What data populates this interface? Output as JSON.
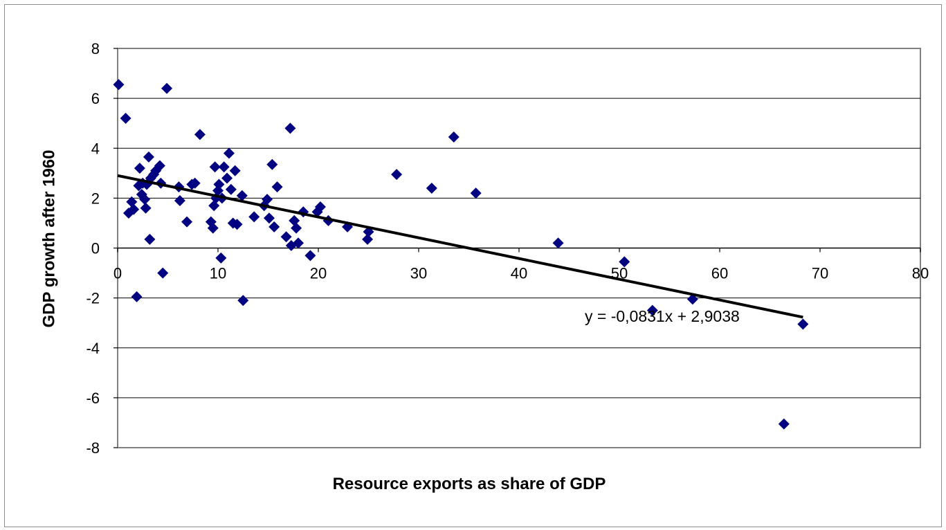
{
  "chart_data": {
    "type": "scatter",
    "title": "",
    "xlabel": "Resource exports as share of GDP",
    "ylabel": "GDP growth after 1960",
    "xlim": [
      0,
      80
    ],
    "ylim": [
      -8,
      8
    ],
    "x_ticks": [
      "0",
      "10",
      "20",
      "30",
      "40",
      "50",
      "60",
      "70",
      "80"
    ],
    "y_ticks": [
      "8",
      "6",
      "4",
      "2",
      "0",
      "-2",
      "-4",
      "-6",
      "-8"
    ],
    "grid": "horizontal",
    "colors": {
      "points": "#000080",
      "trendline": "#000000",
      "grid": "#000000"
    },
    "trendline": {
      "equation": "y = -0,0831x + 2,9038",
      "slope": -0.0831,
      "intercept": 2.9038,
      "x_range": [
        0,
        68.3
      ]
    },
    "series": [
      {
        "marker": "diamond",
        "x": [
          0.1,
          0.8,
          1.1,
          1.4,
          1.6,
          1.9,
          2.1,
          2.2,
          2.4,
          2.5,
          2.7,
          2.8,
          2.9,
          3.1,
          3.2,
          3.3,
          3.6,
          3.8,
          4.2,
          4.3,
          4.5,
          4.9,
          6.1,
          6.2,
          6.9,
          7.4,
          7.7,
          8.2,
          9.3,
          9.5,
          9.6,
          9.7,
          9.8,
          10.0,
          10.1,
          10.3,
          10.4,
          10.6,
          10.9,
          11.1,
          11.3,
          11.5,
          11.7,
          11.9,
          12.4,
          12.5,
          13.6,
          14.6,
          14.9,
          15.1,
          15.4,
          15.6,
          15.9,
          16.8,
          17.2,
          17.3,
          17.6,
          17.8,
          18.0,
          18.5,
          19.2,
          19.9,
          20.2,
          21.0,
          22.9,
          24.9,
          25.0,
          27.8,
          31.3,
          33.5,
          35.7,
          43.9,
          50.5,
          53.3,
          57.3,
          66.4,
          68.3
        ],
        "y": [
          6.55,
          5.2,
          1.4,
          1.85,
          1.55,
          -1.95,
          2.5,
          3.2,
          2.15,
          2.6,
          1.95,
          1.6,
          2.55,
          3.65,
          0.35,
          2.8,
          2.95,
          3.1,
          3.3,
          2.6,
          -1.0,
          6.4,
          2.45,
          1.9,
          1.05,
          2.55,
          2.6,
          4.55,
          1.05,
          0.8,
          1.7,
          3.25,
          2.0,
          2.3,
          2.55,
          -0.4,
          2.0,
          3.25,
          2.8,
          3.8,
          2.35,
          1.0,
          3.1,
          0.95,
          2.1,
          -2.1,
          1.25,
          1.7,
          1.95,
          1.2,
          3.35,
          0.85,
          2.45,
          0.45,
          4.8,
          0.1,
          1.1,
          0.8,
          0.2,
          1.45,
          -0.3,
          1.45,
          1.65,
          1.1,
          0.85,
          0.35,
          0.65,
          2.95,
          2.4,
          4.45,
          2.2,
          0.2,
          -0.55,
          -2.5,
          -2.05,
          -7.05,
          -3.05
        ]
      }
    ]
  }
}
